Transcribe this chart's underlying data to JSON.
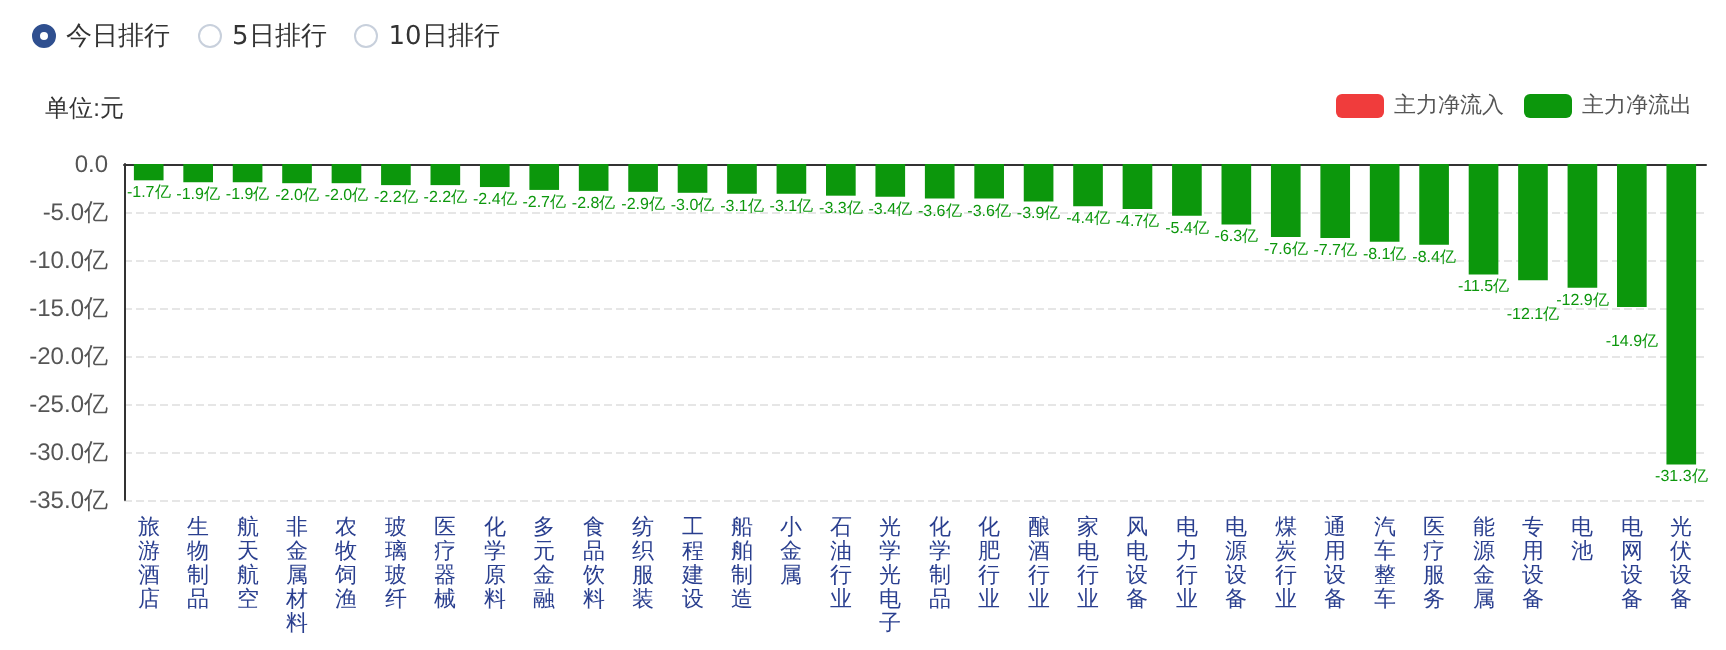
{
  "chart_data": {
    "type": "bar",
    "ylabel": "单位:元",
    "annotations": [
      "今日排行",
      "5日排行",
      "10日排行"
    ],
    "categories": [
      "旅游酒店",
      "生物制品",
      "航天航空",
      "非金属材料",
      "农牧饲渔",
      "玻璃玻纤",
      "医疗器械",
      "化学原料",
      "多元金融",
      "食品饮料",
      "纺织服装",
      "工程建设",
      "船舶制造",
      "小金属",
      "石油行业",
      "光学光电子",
      "化学制品",
      "化肥行业",
      "酿酒行业",
      "家电行业",
      "风电设备",
      "电力行业",
      "电源设备",
      "煤炭行业",
      "通用设备",
      "汽车整车",
      "医疗服务",
      "能源金属",
      "专用设备",
      "电池",
      "电网设备",
      "光伏设备"
    ],
    "series": [
      {
        "name": "主力净流入",
        "color": "#f03c3c",
        "values": [
          null,
          null,
          null,
          null,
          null,
          null,
          null,
          null,
          null,
          null,
          null,
          null,
          null,
          null,
          null,
          null,
          null,
          null,
          null,
          null,
          null,
          null,
          null,
          null,
          null,
          null,
          null,
          null,
          null,
          null,
          null,
          null
        ]
      },
      {
        "name": "主力净流出",
        "color": "#0c970c",
        "values": [
          -1.7,
          -1.9,
          -1.9,
          -2.0,
          -2.0,
          -2.2,
          -2.2,
          -2.4,
          -2.7,
          -2.8,
          -2.9,
          -3.0,
          -3.1,
          -3.1,
          -3.3,
          -3.4,
          -3.6,
          -3.6,
          -3.9,
          -4.4,
          -4.7,
          -5.4,
          -6.3,
          -7.6,
          -7.7,
          -8.1,
          -8.4,
          -11.5,
          -12.1,
          -12.9,
          -14.9,
          -31.3
        ],
        "value_labels": [
          "-1.7亿",
          "-1.9亿",
          "-1.9亿",
          "-2.0亿",
          "-2.0亿",
          "-2.2亿",
          "-2.2亿",
          "-2.4亿",
          "-2.7亿",
          "-2.8亿",
          "-2.9亿",
          "-3.0亿",
          "-3.1亿",
          "-3.1亿",
          "-3.3亿",
          "-3.4亿",
          "-3.6亿",
          "-3.6亿",
          "-3.9亿",
          "-4.4亿",
          "-4.7亿",
          "-5.4亿",
          "-6.3亿",
          "-7.6亿",
          "-7.7亿",
          "-8.1亿",
          "-8.4亿",
          "-11.5亿",
          "-12.1亿",
          "-12.9亿",
          "-14.9亿",
          "-31.3亿"
        ]
      }
    ],
    "stacked": true,
    "ylim": [
      -35,
      0
    ],
    "yticks": [
      {
        "value": 0,
        "label": "0.0"
      },
      {
        "value": -5,
        "label": "-5.0亿"
      },
      {
        "value": -10,
        "label": "-10.0亿"
      },
      {
        "value": -15,
        "label": "-15.0亿"
      },
      {
        "value": -20,
        "label": "-20.0亿"
      },
      {
        "value": -25,
        "label": "-25.0亿"
      },
      {
        "value": -30,
        "label": "-30.0亿"
      },
      {
        "value": -35,
        "label": "-35.0亿"
      }
    ],
    "grid": "y",
    "legend": "top right"
  }
}
